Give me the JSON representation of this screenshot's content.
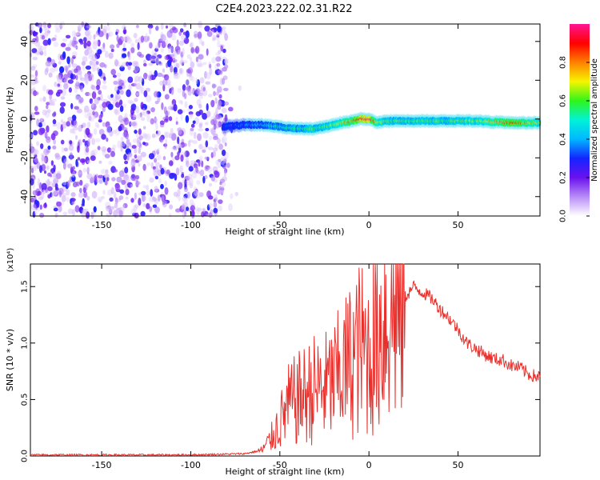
{
  "title": "C2E4.2023.222.02.31.R22",
  "colors": {
    "snr_line": "#e8312d",
    "noise_purple": "#7a1ff0",
    "colorbar": [
      "#ffffff",
      "#b98cf7",
      "#6a11ee",
      "#1424ff",
      "#00b7ff",
      "#00f2d9",
      "#2ff51a",
      "#f5f500",
      "#ff8000",
      "#ff0000",
      "#ff1493"
    ]
  },
  "chart_data": [
    {
      "type": "heatmap",
      "xlabel": "Height of straight line (km)",
      "ylabel": "Frequency (Hz)",
      "xlim": [
        -190,
        96
      ],
      "ylim": [
        -50,
        49
      ],
      "xticks": [
        -150,
        -100,
        -50,
        0,
        50
      ],
      "yticks": [
        -40,
        -20,
        0,
        20,
        40
      ],
      "noise_region": {
        "x": [
          -190,
          -80
        ],
        "y": [
          -50,
          49
        ]
      },
      "ridge": {
        "x": [
          -82,
          -70,
          -60,
          -50,
          -40,
          -30,
          -20,
          -10,
          -5,
          0,
          5,
          10,
          20,
          40,
          60,
          80,
          96
        ],
        "freq_hz": [
          -4,
          -3,
          -3,
          -4,
          -5,
          -5,
          -3,
          -1,
          0,
          0,
          -2,
          -1,
          -1,
          -1,
          -1,
          -2,
          -2
        ],
        "amplitude": [
          0.3,
          0.35,
          0.45,
          0.5,
          0.55,
          0.6,
          0.65,
          0.8,
          0.95,
          0.95,
          0.7,
          0.6,
          0.6,
          0.6,
          0.65,
          0.85,
          0.7
        ]
      },
      "colorbar": {
        "label": "Normalized spectral amplitude",
        "range": [
          0.0,
          1.0
        ],
        "ticks": [
          "0.0",
          "0.2",
          "0.4",
          "0.6",
          "0.8"
        ]
      }
    },
    {
      "type": "line",
      "xlabel": "Height of straight line (km)",
      "ylabel": "SNR (10 * v/v)",
      "y_multiplier": "(x10⁴)",
      "xlim": [
        -190,
        96
      ],
      "ylim": [
        0,
        1.7
      ],
      "xticks": [
        -150,
        -100,
        -50,
        0,
        50
      ],
      "yticks": [
        "0.0",
        "0.5",
        "1.0",
        "1.5"
      ],
      "series": [
        {
          "x": [
            -190,
            -150,
            -100,
            -70,
            -60,
            -55,
            -50,
            -45,
            -40,
            -35,
            -30,
            -25,
            -20,
            -15,
            -10,
            -5,
            0,
            5,
            10,
            15,
            20,
            25,
            30,
            35,
            40,
            45,
            50,
            55,
            60,
            65,
            70,
            75,
            80,
            85,
            90,
            96
          ],
          "y": [
            0.01,
            0.01,
            0.01,
            0.02,
            0.05,
            0.15,
            0.3,
            0.45,
            0.5,
            0.55,
            0.6,
            0.6,
            0.65,
            0.75,
            0.85,
            0.95,
            0.9,
            1.1,
            1.25,
            1.3,
            1.4,
            1.5,
            1.45,
            1.4,
            1.3,
            1.22,
            1.12,
            1.0,
            0.95,
            0.9,
            0.86,
            0.85,
            0.8,
            0.78,
            0.72,
            0.7
          ]
        }
      ]
    }
  ]
}
